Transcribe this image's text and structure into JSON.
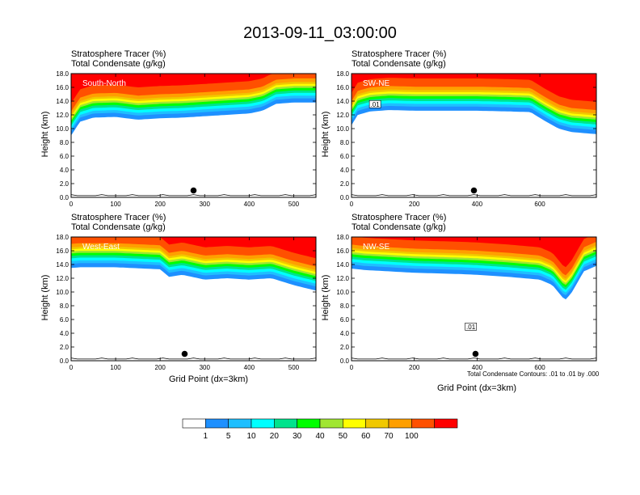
{
  "title": "2013-09-11_03:00:00",
  "field_labels": [
    "Stratosphere Tracer   (%)",
    "Total Condensate   (g/kg)"
  ],
  "contour_note": "Total Condensate Contours: .01 to .01 by .000",
  "colors": {
    "levels": [
      "#ffffff",
      "#1e90ff",
      "#1fbfff",
      "#00ffff",
      "#00e38c",
      "#00ff00",
      "#a0e632",
      "#ffff00",
      "#f0c800",
      "#ff9f00",
      "#ff5000",
      "#ff0000"
    ],
    "contour": "#000000"
  },
  "colorbar": {
    "labels": [
      "1",
      "5",
      "10",
      "20",
      "30",
      "40",
      "50",
      "60",
      "70",
      "100"
    ]
  },
  "chart_data": [
    {
      "type": "heatmap",
      "name": "South-North",
      "ylabel": "Height (km)",
      "xlabel": "",
      "xlim": [
        0,
        550
      ],
      "ylim": [
        0,
        18
      ],
      "xticks": [
        "0",
        "100",
        "200",
        "300",
        "400",
        "500"
      ],
      "yticks": [
        "0.0",
        "2.0",
        "4.0",
        "6.0",
        "8.0",
        "10.0",
        "12.0",
        "14.0",
        "16.0",
        "18.0"
      ],
      "tracer_profile": {
        "x": [
          0,
          20,
          50,
          100,
          150,
          200,
          250,
          300,
          350,
          400,
          430,
          460,
          500,
          550
        ],
        "base_km": [
          9.0,
          11.0,
          11.6,
          11.7,
          11.3,
          11.5,
          11.6,
          11.8,
          12.0,
          12.2,
          12.6,
          13.6,
          13.8,
          13.8
        ]
      },
      "marker_x": 275,
      "contour_labels": []
    },
    {
      "type": "heatmap",
      "name": "SW-NE",
      "ylabel": "Height (km)",
      "xlabel": "",
      "xlim": [
        0,
        780
      ],
      "ylim": [
        0,
        18
      ],
      "xticks": [
        "0",
        "200",
        "400",
        "600"
      ],
      "yticks": [
        "0.0",
        "2.0",
        "4.0",
        "6.0",
        "8.0",
        "10.0",
        "12.0",
        "14.0",
        "16.0",
        "18.0"
      ],
      "tracer_profile": {
        "x": [
          0,
          20,
          60,
          120,
          200,
          300,
          400,
          500,
          570,
          620,
          660,
          700,
          780
        ],
        "base_km": [
          10.5,
          12.0,
          12.5,
          12.7,
          12.6,
          12.6,
          12.6,
          12.5,
          12.4,
          11.0,
          10.0,
          9.5,
          9.2
        ]
      },
      "marker_x": 390,
      "contour_labels": [
        ".01"
      ]
    },
    {
      "type": "heatmap",
      "name": "West-East",
      "ylabel": "Height (km)",
      "xlabel": "Grid Point (dx=3km)",
      "xlim": [
        0,
        550
      ],
      "ylim": [
        0,
        18
      ],
      "xticks": [
        "0",
        "100",
        "200",
        "300",
        "400",
        "500"
      ],
      "yticks": [
        "0.0",
        "2.0",
        "4.0",
        "6.0",
        "8.0",
        "10.0",
        "12.0",
        "14.0",
        "16.0",
        "18.0"
      ],
      "tracer_profile": {
        "x": [
          0,
          20,
          100,
          200,
          220,
          250,
          300,
          350,
          400,
          450,
          500,
          550
        ],
        "base_km": [
          13.5,
          13.6,
          13.6,
          13.3,
          12.2,
          12.5,
          11.8,
          12.0,
          11.8,
          12.0,
          11.0,
          10.2
        ]
      },
      "marker_x": 255,
      "contour_labels": []
    },
    {
      "type": "heatmap",
      "name": "NW-SE",
      "ylabel": "Height (km)",
      "xlabel": "Grid Point (dx=3km)",
      "xlim": [
        0,
        780
      ],
      "ylim": [
        0,
        18
      ],
      "xticks": [
        "0",
        "200",
        "400",
        "600"
      ],
      "yticks": [
        "0.0",
        "2.0",
        "4.0",
        "6.0",
        "8.0",
        "10.0",
        "12.0",
        "14.0",
        "16.0",
        "18.0"
      ],
      "tracer_profile": {
        "x": [
          0,
          40,
          200,
          350,
          400,
          500,
          600,
          640,
          680,
          700,
          740,
          780
        ],
        "base_km": [
          13.4,
          13.2,
          12.8,
          12.6,
          12.5,
          12.2,
          11.8,
          11.0,
          8.8,
          9.8,
          13.0,
          13.8
        ]
      },
      "marker_x": 395,
      "contour_labels": [
        ".01"
      ]
    }
  ]
}
